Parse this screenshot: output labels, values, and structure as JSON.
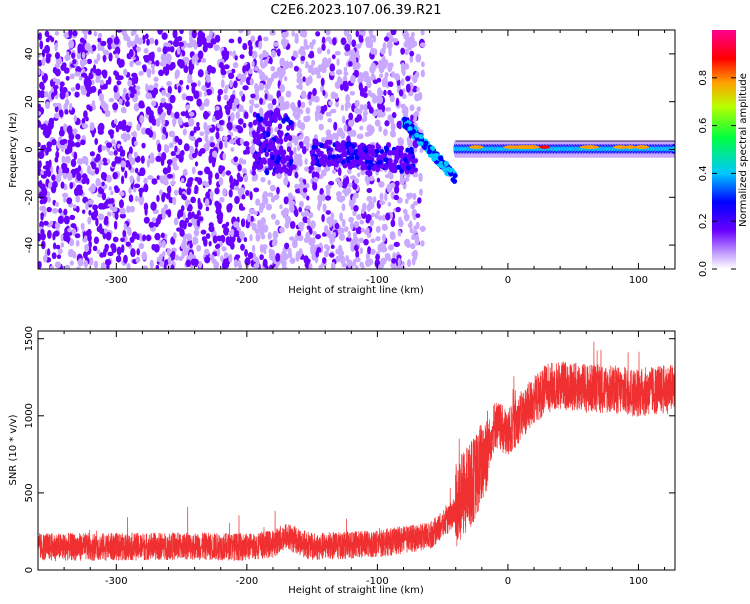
{
  "title": "C2E6.2023.107.06.39.R21",
  "colors": {
    "snr_trace": "#f03030",
    "spectrogram_base": "#6a00ff",
    "spectrogram_light": "#c9a8ff"
  },
  "chart_data": [
    {
      "type": "heatmap",
      "name": "spectrogram",
      "xlabel": "Height of straight line (km)",
      "ylabel": "Frequency (Hz)",
      "xlim": [
        -360,
        128
      ],
      "ylim": [
        -50,
        50
      ],
      "x_ticks": [
        -300,
        -200,
        -100,
        0,
        100
      ],
      "x_tick_labels": [
        "-300",
        "-200",
        "-100",
        "0",
        "100"
      ],
      "y_ticks": [
        -40,
        -20,
        0,
        20,
        40
      ],
      "y_tick_labels": [
        "-40",
        "-20",
        "0",
        "20",
        "40"
      ],
      "colorbar": {
        "label": "Normalized spectral amplitude",
        "range": [
          0.0,
          1.0
        ],
        "ticks": [
          0.0,
          0.2,
          0.4,
          0.6,
          0.8
        ],
        "tick_labels": [
          "0.0",
          "0.2",
          "0.4",
          "0.6",
          "0.8"
        ]
      },
      "features": [
        {
          "name": "broadband noise",
          "x_range": [
            -360,
            -65
          ],
          "freq_range": [
            -50,
            50
          ],
          "amplitude": 0.15
        },
        {
          "name": "burst cluster",
          "x_range": [
            -195,
            -165
          ],
          "freq_range": [
            -10,
            15
          ],
          "amplitude": 0.35
        },
        {
          "name": "diagonal chirp",
          "x_range": [
            -80,
            -40
          ],
          "freq_range": [
            -12,
            12
          ],
          "amplitude": 0.4
        },
        {
          "name": "steady carrier",
          "x_range": [
            -40,
            128
          ],
          "freq_range": [
            -1,
            1.5
          ],
          "amplitude": 0.9
        }
      ]
    },
    {
      "type": "line",
      "name": "snr",
      "xlabel": "Height of straight line (km)",
      "ylabel": "SNR (10 * v/v)",
      "xlim": [
        -360,
        128
      ],
      "ylim": [
        0,
        1550
      ],
      "x_ticks": [
        -300,
        -200,
        -100,
        0,
        100
      ],
      "x_tick_labels": [
        "-300",
        "-200",
        "-100",
        "0",
        "100"
      ],
      "y_ticks": [
        0,
        500,
        1000,
        1500
      ],
      "y_tick_labels": [
        "0",
        "500",
        "1000",
        "1500"
      ],
      "series": [
        {
          "name": "SNR",
          "x": [
            -360,
            -300,
            -250,
            -200,
            -180,
            -170,
            -150,
            -100,
            -60,
            -45,
            -35,
            -25,
            -15,
            -10,
            0,
            10,
            20,
            30,
            40,
            60,
            80,
            100,
            128
          ],
          "y": [
            150,
            150,
            155,
            150,
            170,
            220,
            150,
            170,
            220,
            330,
            480,
            600,
            800,
            950,
            880,
            1000,
            1100,
            1180,
            1200,
            1180,
            1170,
            1150,
            1180
          ]
        }
      ]
    }
  ]
}
